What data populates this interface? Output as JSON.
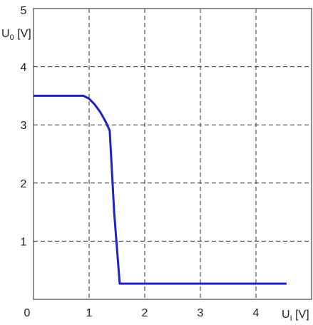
{
  "chart_data": {
    "type": "line",
    "xlabel": {
      "main": "U",
      "sub": "I",
      "unit": " [V]"
    },
    "ylabel": {
      "main": "U",
      "sub": "0",
      "unit": " [V]"
    },
    "xlim": [
      0,
      5
    ],
    "ylim": [
      0,
      5
    ],
    "x_ticks": [
      "0",
      "1",
      "2",
      "3",
      "4"
    ],
    "y_ticks": [
      "1",
      "2",
      "3",
      "4",
      "5"
    ],
    "grid": true,
    "grid_style": "dashed",
    "series": [
      {
        "color": "#1f22c8",
        "x": [
          0.0,
          0.9,
          1.0,
          1.1,
          1.2,
          1.3,
          1.37,
          1.45,
          1.55,
          1.57,
          4.55
        ],
        "y": [
          3.5,
          3.5,
          3.45,
          3.35,
          3.22,
          3.05,
          2.9,
          1.5,
          0.27,
          0.27,
          0.27
        ]
      }
    ]
  }
}
